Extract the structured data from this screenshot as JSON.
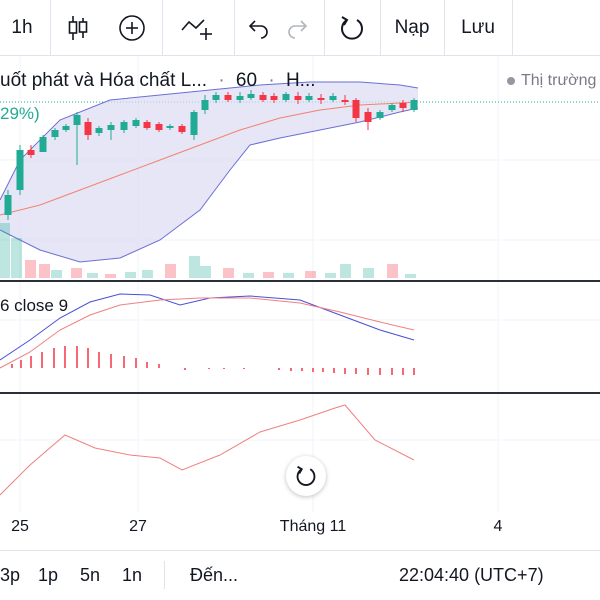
{
  "toolbar": {
    "interval": "1h",
    "load_label": "Nạp",
    "save_label": "Lưu"
  },
  "legend": {
    "title": "uốt phát và Hóa chất L...",
    "interval": "60",
    "exchange": "H...",
    "change_pct": "29%)",
    "market_status": "Thị trường"
  },
  "indicator": {
    "label": "6 close 9"
  },
  "time_axis": {
    "labels": [
      "25",
      "27",
      "Tháng 11",
      "4"
    ]
  },
  "bottom_bar": {
    "ranges": [
      "3p",
      "1p",
      "5n",
      "1n"
    ],
    "goto_label": "Đến...",
    "clock": "22:04:40 (UTC+7)"
  },
  "colors": {
    "up": "#22ab94",
    "down": "#f23645",
    "band_fill": "#dcdcf3",
    "band_line": "#6b6fd6",
    "basis": "#f4826b",
    "macd": "#4a4fd6",
    "signal": "#f08080",
    "rsi": "#f08080"
  },
  "icons": [
    "candles-icon",
    "add-circle-icon",
    "indicators-icon",
    "undo-icon",
    "redo-icon",
    "reset-icon"
  ]
}
